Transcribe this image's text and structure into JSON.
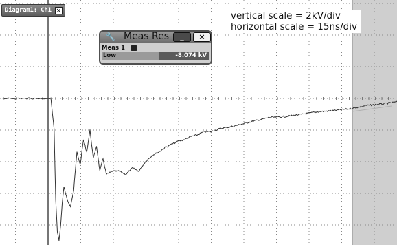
{
  "diagram_tab": {
    "label": "Diagram1: Ch1",
    "close_icon": "close-icon"
  },
  "annotation": {
    "vertical": "vertical scale = 2kV/div",
    "horizontal": "horizontal scale = 15ns/div"
  },
  "meas_window": {
    "title": "Meas Res",
    "title_icon": "wrench-icon",
    "minimize_label": "_",
    "close_label": "×",
    "row_name": "Meas 1",
    "label": "Low",
    "value": "-8.074 kV"
  },
  "colors": {
    "grid_dot": "#888888",
    "trace": "#333333",
    "right_panel": "#cfcfcf",
    "trigger_line": "#3c3c3c"
  },
  "chart_data": {
    "type": "line",
    "xlabel": "",
    "ylabel": "",
    "grid": true,
    "x_units": "div",
    "y_units": "div",
    "series": [
      {
        "x": [
          0,
          0.8,
          1.3,
          1.4,
          1.45,
          1.5,
          1.55,
          1.6,
          1.65,
          1.7,
          1.8,
          1.9,
          2.0,
          2.1,
          2.2,
          2.3,
          2.4,
          2.5,
          2.6,
          2.7,
          2.8,
          2.9,
          3.0,
          3.2,
          3.4,
          3.6,
          3.8,
          4.0,
          4.2,
          4.4,
          4.6,
          4.8,
          5.0,
          5.2,
          5.4,
          5.6,
          5.8,
          6.0,
          6.2,
          6.5,
          6.8,
          7.0,
          7.5,
          8.0,
          8.5,
          9.0,
          9.5,
          10.0,
          10.5,
          11.0,
          11.5,
          12.0
        ],
        "y": [
          0.0,
          0.0,
          0.0,
          -1.0,
          -3.2,
          -4.2,
          -4.5,
          -4.0,
          -3.3,
          -2.8,
          -3.2,
          -3.4,
          -2.9,
          -1.7,
          -2.1,
          -1.3,
          -1.7,
          -1.0,
          -1.9,
          -1.5,
          -2.3,
          -1.9,
          -2.4,
          -2.3,
          -2.3,
          -2.4,
          -2.2,
          -2.3,
          -2.0,
          -1.8,
          -1.7,
          -1.55,
          -1.45,
          -1.35,
          -1.3,
          -1.2,
          -1.15,
          -1.05,
          -1.05,
          -0.95,
          -0.9,
          -0.85,
          -0.72,
          -0.6,
          -0.57,
          -0.5,
          -0.42,
          -0.38,
          -0.32,
          -0.22,
          -0.17,
          -0.1
        ]
      }
    ]
  }
}
